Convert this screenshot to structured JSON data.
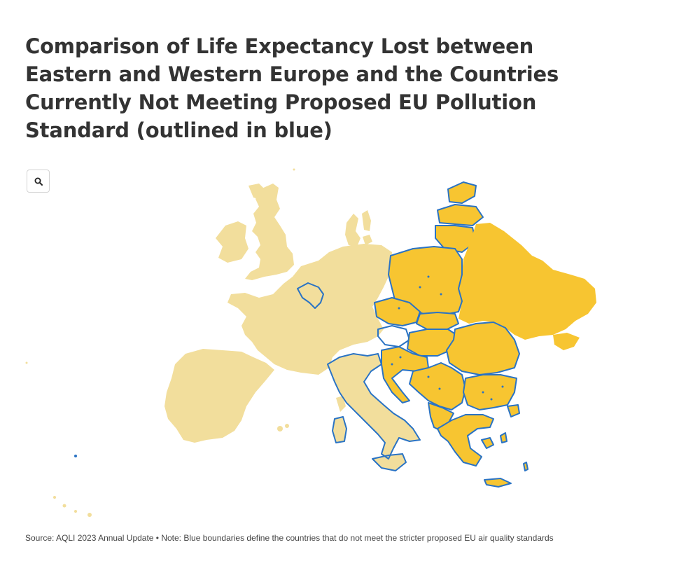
{
  "title": "Comparison of Life Expectancy Lost between Eastern and Western Europe and the Countries Currently Not Meeting Proposed EU Pollution Standard (outlined in blue)",
  "toolbar": {
    "zoom_icon": "search-icon"
  },
  "footer": {
    "source": "Source: AQLI 2023 Annual Update • Note: Blue boundaries define the countries that do not meet the stricter proposed EU air quality standards"
  },
  "map": {
    "regions": [
      "Western Europe",
      "Eastern Europe"
    ],
    "colors": {
      "western_europe": "#f2de9c",
      "eastern_europe": "#f7c531",
      "outline": "#2a73c4",
      "background": "#ffffff"
    }
  }
}
